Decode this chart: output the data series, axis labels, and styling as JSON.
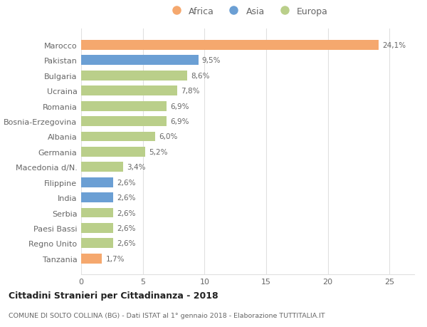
{
  "categories": [
    "Marocco",
    "Pakistan",
    "Bulgaria",
    "Ucraina",
    "Romania",
    "Bosnia-Erzegovina",
    "Albania",
    "Germania",
    "Macedonia d/N.",
    "Filippine",
    "India",
    "Serbia",
    "Paesi Bassi",
    "Regno Unito",
    "Tanzania"
  ],
  "values": [
    24.1,
    9.5,
    8.6,
    7.8,
    6.9,
    6.9,
    6.0,
    5.2,
    3.4,
    2.6,
    2.6,
    2.6,
    2.6,
    2.6,
    1.7
  ],
  "labels": [
    "24,1%",
    "9,5%",
    "8,6%",
    "7,8%",
    "6,9%",
    "6,9%",
    "6,0%",
    "5,2%",
    "3,4%",
    "2,6%",
    "2,6%",
    "2,6%",
    "2,6%",
    "2,6%",
    "1,7%"
  ],
  "continent": [
    "Africa",
    "Asia",
    "Europa",
    "Europa",
    "Europa",
    "Europa",
    "Europa",
    "Europa",
    "Europa",
    "Asia",
    "Asia",
    "Europa",
    "Europa",
    "Europa",
    "Africa"
  ],
  "colors": {
    "Africa": "#F5A86E",
    "Asia": "#6B9FD4",
    "Europa": "#BACF8A"
  },
  "legend_order": [
    "Africa",
    "Asia",
    "Europa"
  ],
  "title1": "Cittadini Stranieri per Cittadinanza - 2018",
  "title2": "COMUNE DI SOLTO COLLINA (BG) - Dati ISTAT al 1° gennaio 2018 - Elaborazione TUTTITALIA.IT",
  "xlim": [
    0,
    27
  ],
  "xticks": [
    0,
    5,
    10,
    15,
    20,
    25
  ],
  "background_color": "#ffffff",
  "grid_color": "#e0e0e0"
}
